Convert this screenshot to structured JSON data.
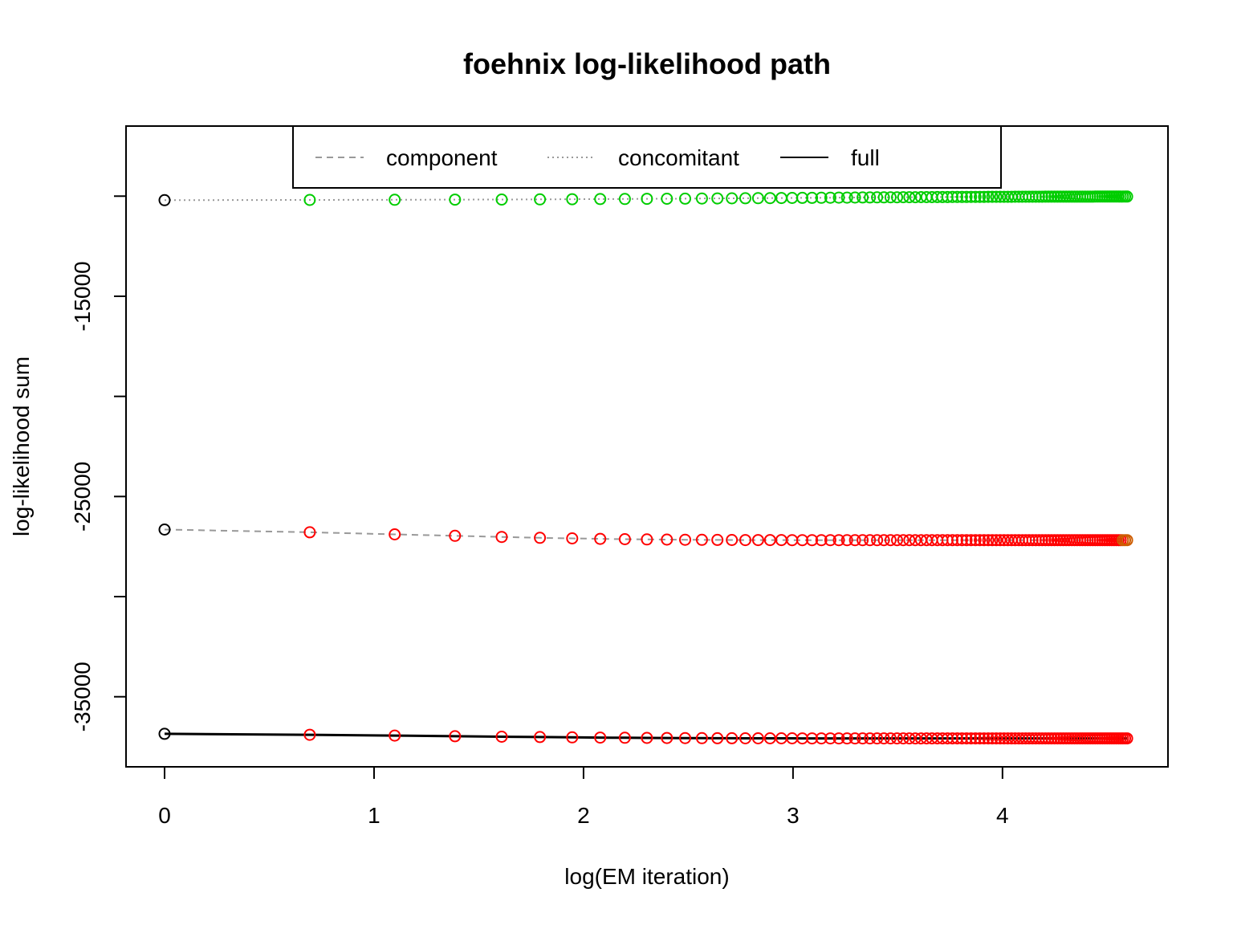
{
  "chart_data": {
    "type": "line",
    "title": "foehnix log-likelihood path",
    "xlabel": "log(EM iteration)",
    "ylabel": "log-likelihood sum",
    "xlim": [
      -0.184,
      4.79
    ],
    "ylim": [
      -38500,
      -6500
    ],
    "x_ticks": [
      "0",
      "1",
      "2",
      "3",
      "4"
    ],
    "x_tick_values": [
      0,
      1,
      2,
      3,
      4
    ],
    "y_ticks": [
      "",
      "-15000",
      "",
      "-25000",
      "",
      "-35000"
    ],
    "y_tick_values": [
      -10000,
      -15000,
      -20000,
      -25000,
      -30000,
      -35000
    ],
    "legend": {
      "position": "top",
      "items": [
        {
          "label": "component",
          "style": "dashed",
          "color": "#999999"
        },
        {
          "label": "concomitant",
          "style": "dotted",
          "color": "#999999"
        },
        {
          "label": "full",
          "style": "solid",
          "color": "#000000"
        }
      ]
    },
    "iterations": 99,
    "series": [
      {
        "name": "concomitant",
        "style": "dotted",
        "line_color": "#999999",
        "start": -10200,
        "end": -10020,
        "decay": 0.05
      },
      {
        "name": "component",
        "style": "dashed",
        "line_color": "#999999",
        "start": -26650,
        "end": -27180,
        "decay": 0.3
      },
      {
        "name": "full",
        "style": "solid",
        "line_color": "#000000",
        "start": -36850,
        "end": -37080,
        "decay": 0.25
      }
    ],
    "point_colors": {
      "first": "#000000",
      "increase": "#00CD00",
      "decrease": "#FF0000",
      "last": "#CD5C00"
    },
    "grid": false
  }
}
